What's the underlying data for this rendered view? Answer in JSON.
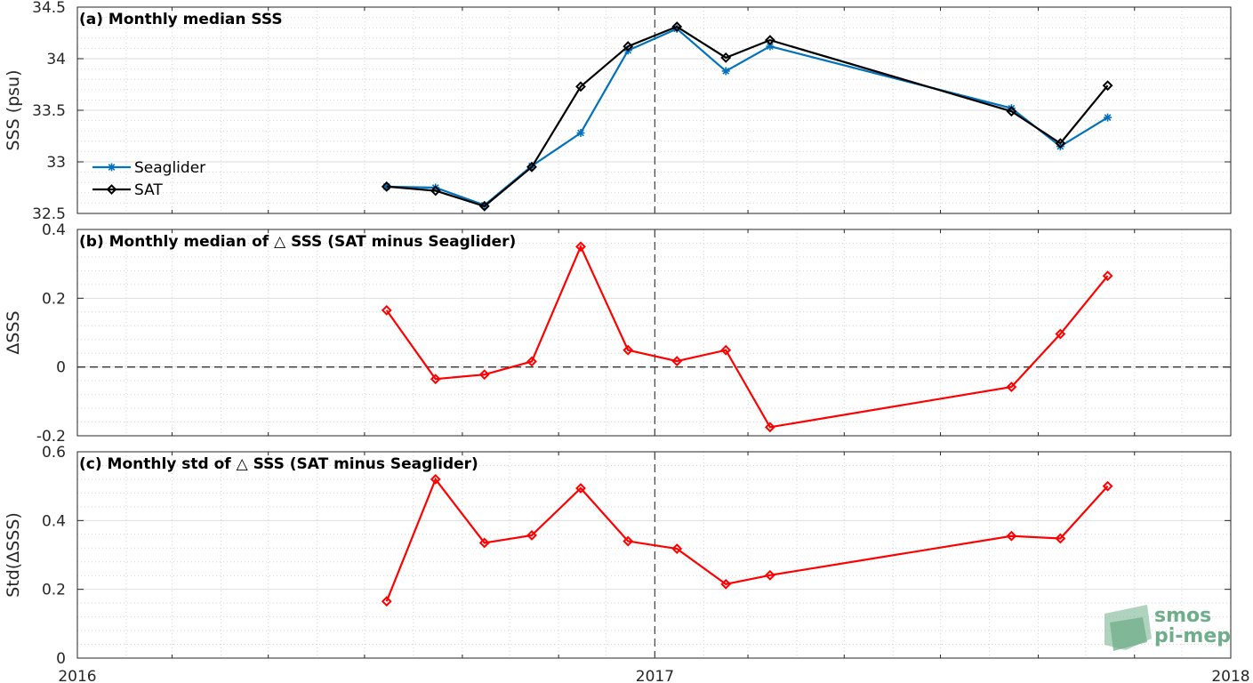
{
  "chart_data": [
    {
      "type": "line",
      "title": "(a) Monthly median SSS",
      "ylabel": "SSS (psu)",
      "xlim": [
        "2016-01-01",
        "2018-01-01"
      ],
      "ylim": [
        32.5,
        34.5
      ],
      "yticks": [
        32.5,
        33,
        33.5,
        34,
        34.5
      ],
      "ytick_labels": [
        "32.5",
        "33",
        "33.5",
        "34",
        "34.5"
      ],
      "grid": true,
      "legend_position": "lower-left",
      "x": [
        "2016-07-15",
        "2016-08-15",
        "2016-09-15",
        "2016-10-15",
        "2016-11-15",
        "2016-12-15",
        "2017-01-15",
        "2017-02-15",
        "2017-03-15",
        "2017-08-15",
        "2017-09-15",
        "2017-10-15"
      ],
      "series": [
        {
          "name": "Seaglider",
          "color": "#0072bd",
          "marker": "asterisk",
          "values": [
            32.76,
            32.75,
            32.58,
            32.96,
            33.28,
            34.08,
            34.29,
            33.88,
            34.12,
            33.52,
            33.15,
            33.43
          ]
        },
        {
          "name": "SAT",
          "color": "#000000",
          "marker": "diamond",
          "values": [
            32.76,
            32.72,
            32.57,
            32.95,
            33.73,
            34.12,
            34.31,
            34.01,
            34.18,
            33.49,
            33.18,
            33.74
          ]
        }
      ]
    },
    {
      "type": "line",
      "title": "(b) Monthly median of △ SSS (SAT minus Seaglider)",
      "ylabel": "ΔSSS",
      "xlim": [
        "2016-01-01",
        "2018-01-01"
      ],
      "ylim": [
        -0.2,
        0.4
      ],
      "yticks": [
        -0.2,
        0,
        0.2,
        0.4
      ],
      "ytick_labels": [
        "-0.2",
        "0",
        "0.2",
        "0.4"
      ],
      "grid": true,
      "reference_line": 0,
      "x": [
        "2016-07-15",
        "2016-08-15",
        "2016-09-15",
        "2016-10-15",
        "2016-11-15",
        "2016-12-15",
        "2017-01-15",
        "2017-02-15",
        "2017-03-15",
        "2017-08-15",
        "2017-09-15",
        "2017-10-15"
      ],
      "series": [
        {
          "color": "#ff0000",
          "marker": "diamond",
          "values": [
            0.165,
            -0.035,
            -0.022,
            0.016,
            0.35,
            0.049,
            0.017,
            0.049,
            -0.175,
            -0.058,
            0.096,
            0.265
          ]
        }
      ]
    },
    {
      "type": "line",
      "title": "(c) Monthly std of △ SSS (SAT minus Seaglider)",
      "ylabel": "Std(ΔSSS)",
      "xlim": [
        "2016-01-01",
        "2018-01-01"
      ],
      "ylim": [
        0,
        0.6
      ],
      "yticks": [
        0,
        0.2,
        0.4,
        0.6
      ],
      "ytick_labels": [
        "0",
        "0.2",
        "0.4",
        "0.6"
      ],
      "xticks": [
        "2016-01-01",
        "2017-01-01",
        "2018-01-01"
      ],
      "xtick_labels": [
        "2016",
        "2017",
        "2018"
      ],
      "grid": true,
      "x": [
        "2016-07-15",
        "2016-08-15",
        "2016-09-15",
        "2016-10-15",
        "2016-11-15",
        "2016-12-15",
        "2017-01-15",
        "2017-02-15",
        "2017-03-15",
        "2017-08-15",
        "2017-09-15",
        "2017-10-15"
      ],
      "series": [
        {
          "color": "#ff0000",
          "marker": "diamond",
          "values": [
            0.165,
            0.52,
            0.335,
            0.357,
            0.494,
            0.34,
            0.318,
            0.215,
            0.241,
            0.355,
            0.348,
            0.5
          ]
        }
      ]
    }
  ],
  "logo": {
    "line1": "smos",
    "line2": "pi-mep",
    "color": "#6fae8a"
  }
}
